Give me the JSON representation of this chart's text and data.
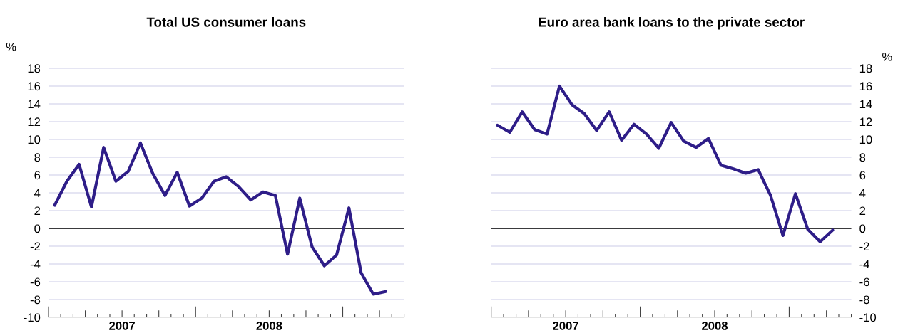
{
  "chart_data": [
    {
      "type": "line",
      "title": "Total US consumer loans",
      "ylabel": "%",
      "x": [
        2006.542,
        2006.625,
        2006.708,
        2006.792,
        2006.875,
        2006.958,
        2007.042,
        2007.125,
        2007.208,
        2007.292,
        2007.375,
        2007.458,
        2007.542,
        2007.625,
        2007.708,
        2007.792,
        2007.875,
        2007.958,
        2008.042,
        2008.125,
        2008.208,
        2008.292,
        2008.375,
        2008.458,
        2008.542,
        2008.625,
        2008.708,
        2008.792
      ],
      "series": [
        {
          "color": "#2e1d88",
          "values": [
            2.6,
            5.3,
            7.2,
            2.4,
            9.1,
            5.3,
            6.4,
            9.6,
            6.2,
            3.7,
            6.3,
            2.5,
            3.4,
            5.3,
            5.8,
            4.7,
            3.2,
            4.1,
            3.7,
            -2.9,
            3.4,
            -2.1,
            -4.2,
            -3.0,
            2.3,
            -5.0,
            -7.4,
            -7.1
          ]
        }
      ],
      "xlim": [
        2006.5,
        2008.917
      ],
      "xticks": [
        {
          "value": 2006.5,
          "label": null
        },
        {
          "value": 2006.583,
          "label": null
        },
        {
          "value": 2006.667,
          "label": null
        },
        {
          "value": 2006.75,
          "label": null
        },
        {
          "value": 2006.833,
          "label": null
        },
        {
          "value": 2006.917,
          "label": null
        },
        2007,
        {
          "value": 2007.083,
          "label": null
        },
        {
          "value": 2007.167,
          "label": null
        },
        {
          "value": 2007.25,
          "label": null
        },
        {
          "value": 2007.333,
          "label": null
        },
        {
          "value": 2007.417,
          "label": null
        },
        {
          "value": 2007.5,
          "label": null
        },
        {
          "value": 2007.583,
          "label": null
        },
        {
          "value": 2007.667,
          "label": null
        },
        {
          "value": 2007.75,
          "label": null
        },
        {
          "value": 2007.833,
          "label": null
        },
        {
          "value": 2007.917,
          "label": null
        },
        2008,
        {
          "value": 2008.083,
          "label": null
        },
        {
          "value": 2008.167,
          "label": null
        },
        {
          "value": 2008.25,
          "label": null
        },
        {
          "value": 2008.333,
          "label": null
        },
        {
          "value": 2008.417,
          "label": null
        },
        {
          "value": 2008.5,
          "label": null
        },
        {
          "value": 2008.583,
          "label": null
        },
        {
          "value": 2008.667,
          "label": null
        },
        {
          "value": 2008.75,
          "label": null
        },
        {
          "value": 2008.833,
          "label": null
        },
        {
          "value": 2008.917,
          "label": null
        }
      ],
      "ylim": [
        -10,
        18
      ],
      "yticks": [
        -10,
        -8,
        -6,
        -4,
        -2,
        0,
        2,
        4,
        6,
        8,
        10,
        12,
        14,
        16,
        18
      ],
      "ref_lines": [
        {
          "axis": "y",
          "value": 0,
          "color": "#000000"
        }
      ],
      "grid": "y",
      "legend": false
    },
    {
      "type": "line",
      "title": "Euro area bank loans to the private sector",
      "ylabel": "%",
      "x": [
        2006.542,
        2006.625,
        2006.708,
        2006.792,
        2006.875,
        2006.958,
        2007.042,
        2007.125,
        2007.208,
        2007.292,
        2007.375,
        2007.458,
        2007.542,
        2007.625,
        2007.708,
        2007.792,
        2007.875,
        2007.958,
        2008.042,
        2008.125,
        2008.208,
        2008.292,
        2008.375,
        2008.458,
        2008.542,
        2008.625,
        2008.708,
        2008.792
      ],
      "series": [
        {
          "color": "#2e1d88",
          "values": [
            11.6,
            10.8,
            13.1,
            11.1,
            10.6,
            16.0,
            13.9,
            12.9,
            11.0,
            13.1,
            9.9,
            11.7,
            10.6,
            9.0,
            11.9,
            9.8,
            9.1,
            10.1,
            7.1,
            6.7,
            6.2,
            6.6,
            3.7,
            -0.8,
            3.9,
            -0.1,
            -1.5,
            -0.2
          ]
        }
      ],
      "xlim": [
        2006.5,
        2008.917
      ],
      "xticks": [
        {
          "value": 2006.5,
          "label": null
        },
        {
          "value": 2006.583,
          "label": null
        },
        {
          "value": 2006.667,
          "label": null
        },
        {
          "value": 2006.75,
          "label": null
        },
        {
          "value": 2006.833,
          "label": null
        },
        {
          "value": 2006.917,
          "label": null
        },
        2007,
        {
          "value": 2007.083,
          "label": null
        },
        {
          "value": 2007.167,
          "label": null
        },
        {
          "value": 2007.25,
          "label": null
        },
        {
          "value": 2007.333,
          "label": null
        },
        {
          "value": 2007.417,
          "label": null
        },
        {
          "value": 2007.5,
          "label": null
        },
        {
          "value": 2007.583,
          "label": null
        },
        {
          "value": 2007.667,
          "label": null
        },
        {
          "value": 2007.75,
          "label": null
        },
        {
          "value": 2007.833,
          "label": null
        },
        {
          "value": 2007.917,
          "label": null
        },
        2008,
        {
          "value": 2008.083,
          "label": null
        },
        {
          "value": 2008.167,
          "label": null
        },
        {
          "value": 2008.25,
          "label": null
        },
        {
          "value": 2008.333,
          "label": null
        },
        {
          "value": 2008.417,
          "label": null
        },
        {
          "value": 2008.5,
          "label": null
        },
        {
          "value": 2008.583,
          "label": null
        },
        {
          "value": 2008.667,
          "label": null
        },
        {
          "value": 2008.75,
          "label": null
        },
        {
          "value": 2008.833,
          "label": null
        },
        {
          "value": 2008.917,
          "label": null
        }
      ],
      "ylim": [
        -10,
        18
      ],
      "yticks": [
        -10,
        -8,
        -6,
        -4,
        -2,
        0,
        2,
        4,
        6,
        8,
        10,
        12,
        14,
        16,
        18
      ],
      "ref_lines": [
        {
          "axis": "y",
          "value": 0,
          "color": "#000000"
        }
      ],
      "grid": "y",
      "legend": false
    }
  ]
}
